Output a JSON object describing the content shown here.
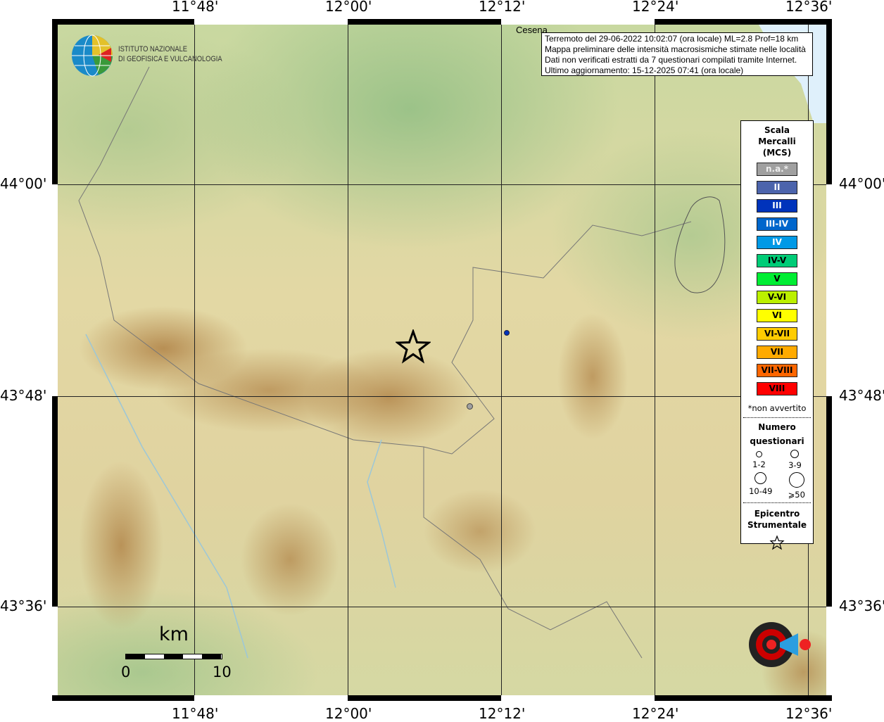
{
  "info": {
    "lines": [
      "Terremoto del 29-06-2022 10:02:07 (ora locale) ML=2.8 Prof=18 km",
      "Mappa preliminare delle intensità macrosismiche stimate nelle località",
      "Dati non verificati estratti da 7 questionari compilati tramite Internet.",
      "Ultimo aggiornamento: 15-12-2025 07:41 (ora locale)"
    ]
  },
  "place": "Cesena",
  "logo": {
    "line1": "ISTITUTO NAZIONALE",
    "line2": "DI GEOFISICA E VULCANOLOGIA",
    "hst": "www.haisentitoilterremoto.it"
  },
  "axes": {
    "lon": [
      "11°48'",
      "12°00'",
      "12°12'",
      "12°24'",
      "12°36'"
    ],
    "lat": [
      "44°00'",
      "43°48'",
      "43°36'"
    ]
  },
  "scale_bar": {
    "unit": "km",
    "start": "0",
    "end": "10"
  },
  "legend": {
    "title": [
      "Scala",
      "Mercalli",
      "(MCS)"
    ],
    "classes": [
      {
        "label": "n.a.*",
        "color": "#a0a0a0",
        "text": "#eee"
      },
      {
        "label": "II",
        "color": "#4c64ac",
        "text": "#fff"
      },
      {
        "label": "III",
        "color": "#0033bb",
        "text": "#fff"
      },
      {
        "label": "III-IV",
        "color": "#0066cc",
        "text": "#fff"
      },
      {
        "label": "IV",
        "color": "#0099e6",
        "text": "#fff"
      },
      {
        "label": "IV-V",
        "color": "#00cc77",
        "text": "#000"
      },
      {
        "label": "V",
        "color": "#00ee33",
        "text": "#000"
      },
      {
        "label": "V-VI",
        "color": "#bbf000",
        "text": "#000"
      },
      {
        "label": "VI",
        "color": "#ffff00",
        "text": "#000"
      },
      {
        "label": "VI-VII",
        "color": "#ffcc00",
        "text": "#000"
      },
      {
        "label": "VII",
        "color": "#ffaa00",
        "text": "#000"
      },
      {
        "label": "VII-VIII",
        "color": "#ff6600",
        "text": "#000"
      },
      {
        "label": "VIII",
        "color": "#ff0000",
        "text": "#000"
      }
    ],
    "note": "*non avvertito",
    "count_title": [
      "Numero",
      "questionari"
    ],
    "counts": [
      "1-2",
      "3-9",
      "10-49",
      "⩾50"
    ],
    "epi_title": [
      "Epicentro",
      "Strumentale"
    ]
  },
  "points": [
    {
      "intensity": "III",
      "color": "#0033bb"
    },
    {
      "intensity": "n.a.*",
      "color": "#a0a0a0"
    }
  ]
}
